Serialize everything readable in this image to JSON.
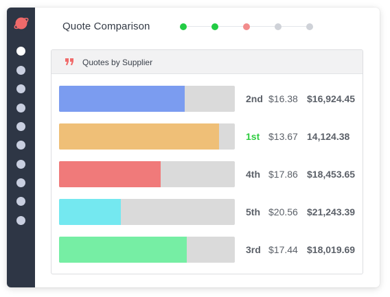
{
  "header": {
    "title": "Quote Comparison"
  },
  "stepper": {
    "steps": [
      {
        "color": "#22cc44",
        "state": "complete"
      },
      {
        "color": "#22cc44",
        "state": "complete"
      },
      {
        "color": "#f28c8c",
        "state": "current"
      },
      {
        "color": "#cfd2d8",
        "state": "pending"
      },
      {
        "color": "#cfd2d8",
        "state": "pending"
      }
    ]
  },
  "sidebar": {
    "logo_color": "#f06a6a",
    "items_count_active_index": 0
  },
  "panel": {
    "title": "Quotes by Supplier",
    "icon": "quote-icon",
    "icon_color": "#f06a6a"
  },
  "quotes": [
    {
      "rank": "2nd",
      "unit_price": "$16.38",
      "total": "$16,924.45",
      "fill_pct": 71.5,
      "color": "#7b9cf0"
    },
    {
      "rank": "1st",
      "unit_price": "$13.67",
      "total": "14,124.38",
      "fill_pct": 91,
      "color": "#efbf77"
    },
    {
      "rank": "4th",
      "unit_price": "$17.86",
      "total": "$18,453.65",
      "fill_pct": 58,
      "color": "#f07a7a"
    },
    {
      "rank": "5th",
      "unit_price": "$20.56",
      "total": "$21,243.39",
      "fill_pct": 35,
      "color": "#74e8f0"
    },
    {
      "rank": "3rd",
      "unit_price": "$17.44",
      "total": "$18,019.69",
      "fill_pct": 72.5,
      "color": "#76eea4"
    }
  ]
}
